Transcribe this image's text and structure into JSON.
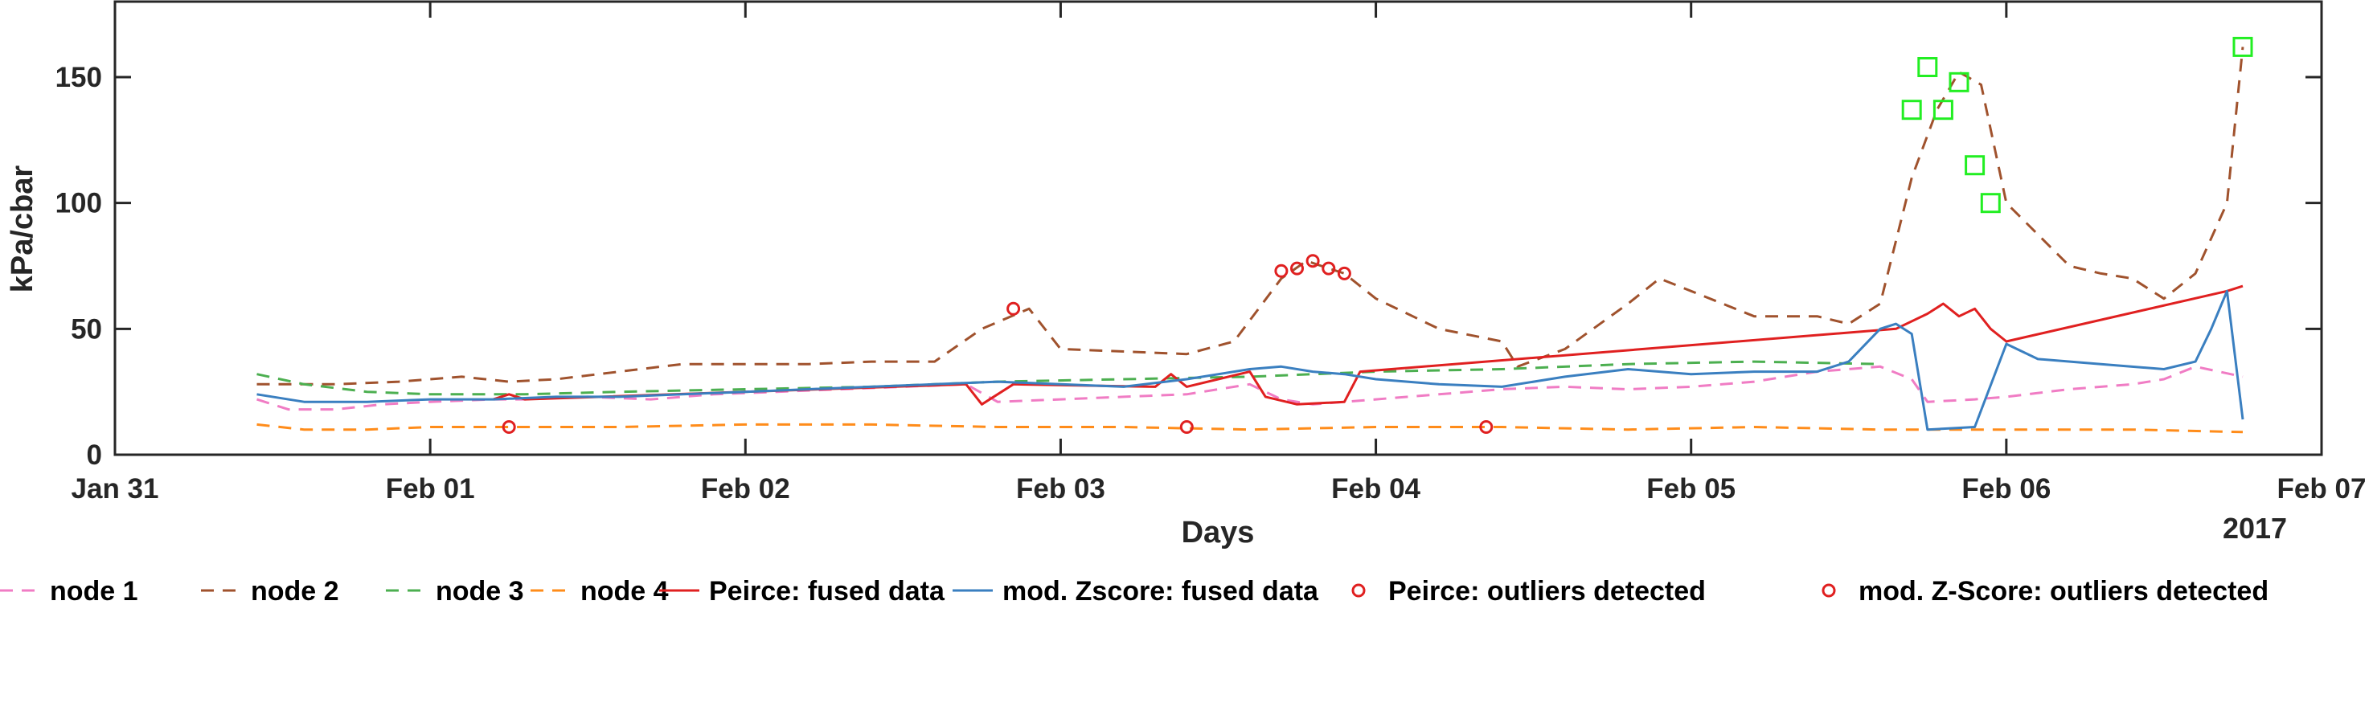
{
  "chart_data": {
    "type": "line",
    "xlabel": "Days",
    "ylabel": "kPa/cbar",
    "year_label": "2017",
    "x_unit": "day (0 = Jan 31)",
    "xlim": [
      0,
      7
    ],
    "ylim": [
      0,
      180
    ],
    "x_ticks": [
      {
        "value": 0,
        "label": "Jan 31"
      },
      {
        "value": 1,
        "label": "Feb 01"
      },
      {
        "value": 2,
        "label": "Feb 02"
      },
      {
        "value": 3,
        "label": "Feb 03"
      },
      {
        "value": 4,
        "label": "Feb 04"
      },
      {
        "value": 5,
        "label": "Feb 05"
      },
      {
        "value": 6,
        "label": "Feb 06"
      },
      {
        "value": 7,
        "label": "Feb 07"
      }
    ],
    "y_ticks": [
      0,
      50,
      100,
      150
    ],
    "grid": false,
    "legend_position": "bottom",
    "colors": {
      "node1": "#f07cc4",
      "node2": "#a0522d",
      "node3": "#4caf50",
      "node4": "#ff8c1a",
      "peirce": "#e02020",
      "zscore": "#3a7fc0",
      "peirce_outliers": "#e02020",
      "zscore_outliers": "#22ee22"
    },
    "series": [
      {
        "name": "node 1",
        "key": "node1",
        "dash": "dashed",
        "x": [
          0.45,
          0.55,
          0.7,
          0.85,
          1.0,
          1.2,
          1.3,
          1.5,
          1.7,
          1.9,
          2.1,
          2.3,
          2.5,
          2.7,
          2.8,
          3.0,
          3.2,
          3.4,
          3.6,
          3.7,
          3.8,
          3.9,
          4.0,
          4.2,
          4.4,
          4.6,
          4.8,
          5.0,
          5.2,
          5.4,
          5.6,
          5.7,
          5.75,
          5.9,
          6.0,
          6.2,
          6.4,
          6.5,
          6.6,
          6.75
        ],
        "y": [
          22,
          18,
          18,
          20,
          21,
          22,
          22,
          23,
          22,
          24,
          25,
          26,
          27,
          28,
          21,
          22,
          23,
          24,
          28,
          22,
          20,
          21,
          22,
          24,
          26,
          27,
          26,
          27,
          29,
          33,
          35,
          30,
          21,
          22,
          23,
          26,
          28,
          30,
          35,
          31
        ]
      },
      {
        "name": "node 2",
        "key": "node2",
        "dash": "dashed",
        "x": [
          0.45,
          0.7,
          0.9,
          1.1,
          1.25,
          1.4,
          1.6,
          1.8,
          2.0,
          2.2,
          2.4,
          2.6,
          2.75,
          2.9,
          3.0,
          3.2,
          3.4,
          3.55,
          3.7,
          3.78,
          3.85,
          3.9,
          4.0,
          4.2,
          4.4,
          4.45,
          4.6,
          4.8,
          4.9,
          5.0,
          5.2,
          5.4,
          5.5,
          5.6,
          5.7,
          5.78,
          5.85,
          5.92,
          6.0,
          6.2,
          6.3,
          6.4,
          6.5,
          6.6,
          6.7,
          6.75
        ],
        "y": [
          28,
          28,
          29,
          31,
          29,
          30,
          33,
          36,
          36,
          36,
          37,
          37,
          50,
          58,
          42,
          41,
          40,
          45,
          70,
          77,
          74,
          72,
          62,
          50,
          45,
          35,
          42,
          60,
          70,
          65,
          55,
          55,
          52,
          60,
          110,
          137,
          152,
          147,
          100,
          75,
          72,
          70,
          62,
          72,
          100,
          162
        ]
      },
      {
        "name": "node 3",
        "key": "node3",
        "dash": "dashed",
        "x": [
          0.45,
          0.6,
          0.8,
          1.0,
          1.3,
          1.6,
          2.0,
          2.4,
          2.8,
          3.2,
          3.6,
          4.0,
          4.4,
          4.8,
          5.2,
          5.6
        ],
        "y": [
          32,
          28,
          25,
          24,
          24,
          25,
          26,
          27,
          29,
          30,
          31,
          33,
          34,
          36,
          37,
          36
        ]
      },
      {
        "name": "node 4",
        "key": "node4",
        "dash": "dashed",
        "x": [
          0.45,
          0.6,
          0.8,
          1.0,
          1.3,
          1.6,
          2.0,
          2.4,
          2.8,
          3.2,
          3.6,
          4.0,
          4.4,
          4.8,
          5.2,
          5.6,
          6.0,
          6.4,
          6.75
        ],
        "y": [
          12,
          10,
          10,
          11,
          11,
          11,
          12,
          12,
          11,
          11,
          10,
          11,
          11,
          10,
          11,
          10,
          10,
          10,
          9
        ]
      },
      {
        "name": "Peirce: fused data",
        "key": "peirce",
        "dash": "solid",
        "x": [
          1.2,
          1.25,
          1.3,
          2.7,
          2.75,
          2.85,
          3.3,
          3.35,
          3.4,
          3.6,
          3.65,
          3.75,
          3.9,
          3.95,
          5.65,
          5.75,
          5.8,
          5.85,
          5.9,
          5.95,
          6.0,
          6.7,
          6.75
        ],
        "y": [
          22,
          24,
          22,
          28,
          20,
          28,
          27,
          32,
          27,
          33,
          23,
          20,
          21,
          33,
          50,
          56,
          60,
          55,
          58,
          50,
          45,
          65,
          67
        ]
      },
      {
        "name": "mod. Zscore: fused data",
        "key": "zscore",
        "dash": "solid",
        "x": [
          0.45,
          0.6,
          0.8,
          1.0,
          1.2,
          1.4,
          1.6,
          1.8,
          2.0,
          2.2,
          2.4,
          2.6,
          2.8,
          3.0,
          3.2,
          3.4,
          3.6,
          3.7,
          3.8,
          3.9,
          4.0,
          4.2,
          4.4,
          4.6,
          4.8,
          5.0,
          5.2,
          5.4,
          5.5,
          5.6,
          5.65,
          5.7,
          5.75,
          5.9,
          6.0,
          6.1,
          6.3,
          6.5,
          6.6,
          6.65,
          6.7,
          6.75
        ],
        "y": [
          24,
          21,
          21,
          22,
          22,
          23,
          23,
          24,
          25,
          26,
          27,
          28,
          29,
          28,
          27,
          30,
          34,
          35,
          33,
          32,
          30,
          28,
          27,
          31,
          34,
          32,
          33,
          33,
          37,
          50,
          52,
          48,
          10,
          11,
          44,
          38,
          36,
          34,
          37,
          50,
          65,
          14
        ]
      }
    ],
    "peirce_outliers": {
      "name": "Peirce: outliers detected",
      "x": [
        1.25,
        2.85,
        3.4,
        3.7,
        3.75,
        3.8,
        3.85,
        3.9,
        4.35
      ],
      "y": [
        11,
        58,
        11,
        73,
        74,
        77,
        74,
        72,
        11
      ]
    },
    "zscore_outliers": {
      "name": "mod. Z-Score: outliers detected",
      "x": [
        5.7,
        5.75,
        5.8,
        5.85,
        5.9,
        5.95,
        6.75
      ],
      "y": [
        137,
        154,
        137,
        148,
        115,
        100,
        162
      ]
    }
  }
}
